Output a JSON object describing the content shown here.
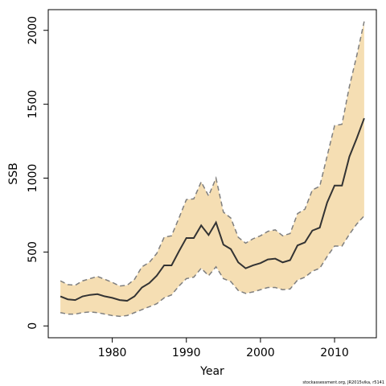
{
  "chart_data": {
    "type": "line",
    "xlabel": "Year",
    "ylabel": "SSB",
    "footnote": "stockassessment.org, JR2015vika, r5141",
    "x": [
      1973,
      1974,
      1975,
      1976,
      1977,
      1978,
      1979,
      1980,
      1981,
      1982,
      1983,
      1984,
      1985,
      1986,
      1987,
      1988,
      1989,
      1990,
      1991,
      1992,
      1993,
      1994,
      1995,
      1996,
      1997,
      1998,
      1999,
      2000,
      2001,
      2002,
      2003,
      2004,
      2005,
      2006,
      2007,
      2008,
      2009,
      2010,
      2011,
      2012,
      2013,
      2014
    ],
    "values": [
      200,
      180,
      175,
      200,
      210,
      215,
      200,
      190,
      175,
      170,
      200,
      260,
      290,
      340,
      410,
      410,
      505,
      595,
      595,
      680,
      615,
      700,
      550,
      520,
      430,
      390,
      410,
      425,
      450,
      455,
      430,
      445,
      545,
      565,
      645,
      665,
      835,
      950,
      950,
      1145,
      1270,
      1405
    ],
    "lower": [
      90,
      80,
      80,
      90,
      95,
      90,
      80,
      70,
      65,
      70,
      90,
      110,
      130,
      150,
      190,
      210,
      270,
      320,
      330,
      390,
      340,
      400,
      320,
      300,
      240,
      220,
      230,
      245,
      260,
      260,
      245,
      250,
      310,
      330,
      370,
      390,
      470,
      540,
      540,
      620,
      690,
      745
    ],
    "upper": [
      305,
      280,
      275,
      305,
      320,
      335,
      315,
      295,
      270,
      275,
      315,
      400,
      430,
      490,
      600,
      610,
      730,
      855,
      860,
      975,
      880,
      1000,
      770,
      730,
      600,
      560,
      590,
      610,
      640,
      650,
      610,
      625,
      760,
      790,
      920,
      945,
      1150,
      1355,
      1365,
      1620,
      1830,
      2060
    ],
    "color": "#333333",
    "band_color": "#f5deb3",
    "bound_color": "#7f7f7f",
    "xlim": [
      1971.36,
      2015.64
    ],
    "xticks": [
      1980,
      1990,
      2000,
      2010
    ],
    "ylim": [
      -80,
      2140
    ],
    "yticks": [
      0,
      500,
      1000,
      1500,
      2000
    ]
  }
}
